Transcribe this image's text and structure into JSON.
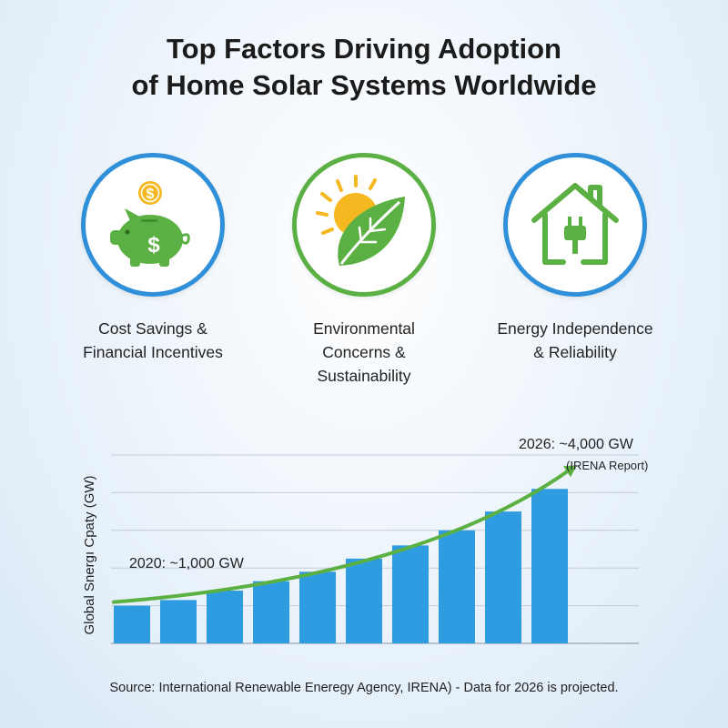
{
  "title": {
    "line1": "Top Factors Driving Adoption",
    "line2": "of Home Solar Systems Worldwide"
  },
  "factors": [
    {
      "label_line1": "Cost Savings &",
      "label_line2": "Financial Incentives",
      "label_line3": "",
      "icon": "piggy-bank-dollar-icon",
      "border_color": "#2f8fd8"
    },
    {
      "label_line1": "Environmental",
      "label_line2": "Concerns &",
      "label_line3": "Sustainability",
      "icon": "sun-leaf-icon",
      "border_color": "#5bb043"
    },
    {
      "label_line1": "Energy Independence",
      "label_line2": "& Reliability",
      "label_line3": "",
      "icon": "house-plug-icon",
      "border_color": "#2f8fd8"
    }
  ],
  "chart_data": {
    "type": "bar",
    "ylabel": "Global Snergı Cpaty (GW)",
    "ylim": [
      0,
      5000
    ],
    "grid": true,
    "values": [
      1000,
      1150,
      1400,
      1650,
      1900,
      2250,
      2600,
      3000,
      3500,
      4100
    ],
    "bar_color": "#2f9be0",
    "trend_color": "#5bb043",
    "annotations": {
      "start": "2020: ~1,000 GW",
      "end": "2026: ~4,000 GW",
      "end_note": "(IRENA Report)"
    }
  },
  "source": "Source: International Renewable Eneregy Agency, IRENA) - Data for 2026 is projected."
}
